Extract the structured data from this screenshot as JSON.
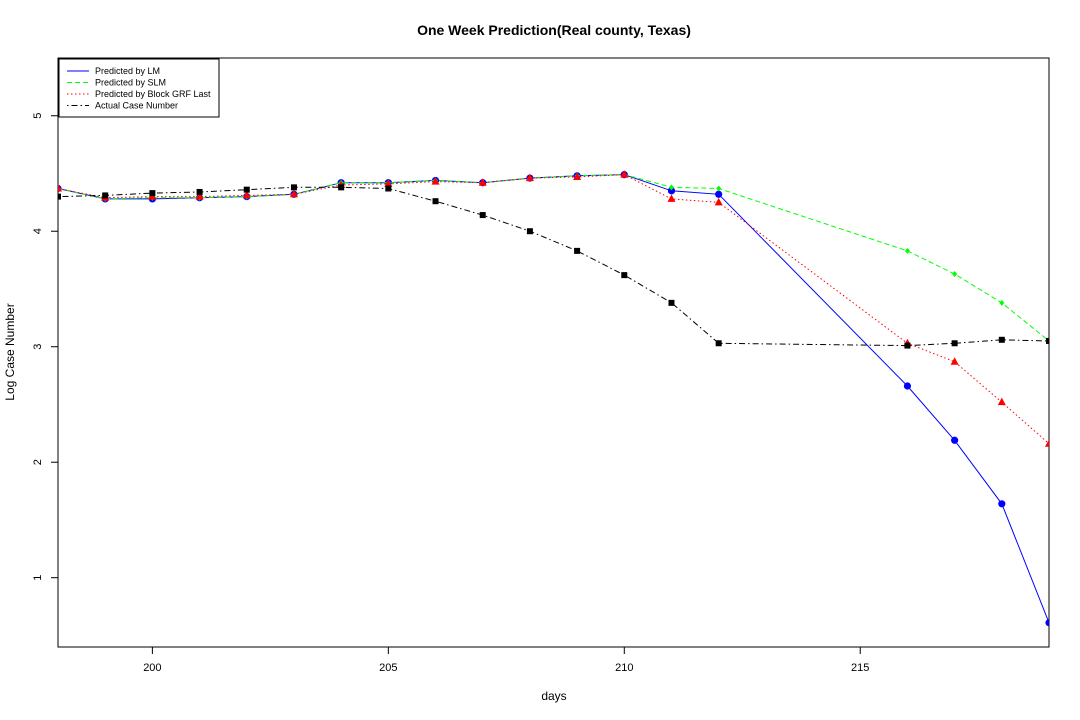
{
  "chart_data": {
    "type": "line",
    "title": "One Week Prediction(Real county, Texas)",
    "xlabel": "days",
    "ylabel": "Log Case Number",
    "xlim": [
      198,
      219
    ],
    "ylim": [
      0.4,
      5.5
    ],
    "xticks": [
      200,
      205,
      210,
      215
    ],
    "yticks": [
      1,
      2,
      3,
      4,
      5
    ],
    "grid": false,
    "legend_position": "top-left",
    "x": [
      198,
      199,
      200,
      201,
      202,
      203,
      204,
      205,
      206,
      207,
      208,
      209,
      210,
      211,
      212,
      216,
      217,
      218,
      219
    ],
    "series": [
      {
        "name": "Predicted by LM",
        "color": "#0000ff",
        "dash": "solid",
        "marker": "circle",
        "values": [
          4.37,
          4.28,
          4.28,
          4.29,
          4.3,
          4.32,
          4.42,
          4.42,
          4.44,
          4.42,
          4.46,
          4.48,
          4.49,
          4.35,
          4.32,
          2.66,
          2.19,
          1.64,
          0.61
        ]
      },
      {
        "name": "Predicted by SLM",
        "color": "#00ff00",
        "dash": "dashed",
        "marker": "diamond",
        "values": [
          4.37,
          4.28,
          4.29,
          4.29,
          4.3,
          4.32,
          4.42,
          4.42,
          4.44,
          4.42,
          4.46,
          4.48,
          4.49,
          4.38,
          4.37,
          3.83,
          3.63,
          3.38,
          3.05
        ]
      },
      {
        "name": "Predicted by Block GRF Last",
        "color": "#ff0000",
        "dash": "dotted",
        "marker": "triangle",
        "values": [
          4.37,
          4.29,
          4.3,
          4.3,
          4.31,
          4.32,
          4.4,
          4.41,
          4.43,
          4.42,
          4.46,
          4.47,
          4.49,
          4.28,
          4.25,
          3.03,
          2.87,
          2.52,
          2.16
        ]
      },
      {
        "name": "Actual Case Number",
        "color": "#000000",
        "dash": "dotdash",
        "marker": "square",
        "values": [
          4.3,
          4.31,
          4.33,
          4.34,
          4.36,
          4.38,
          4.38,
          4.37,
          4.26,
          4.14,
          4.0,
          3.83,
          3.62,
          3.38,
          3.03,
          3.01,
          3.03,
          3.06,
          3.05
        ]
      }
    ]
  }
}
